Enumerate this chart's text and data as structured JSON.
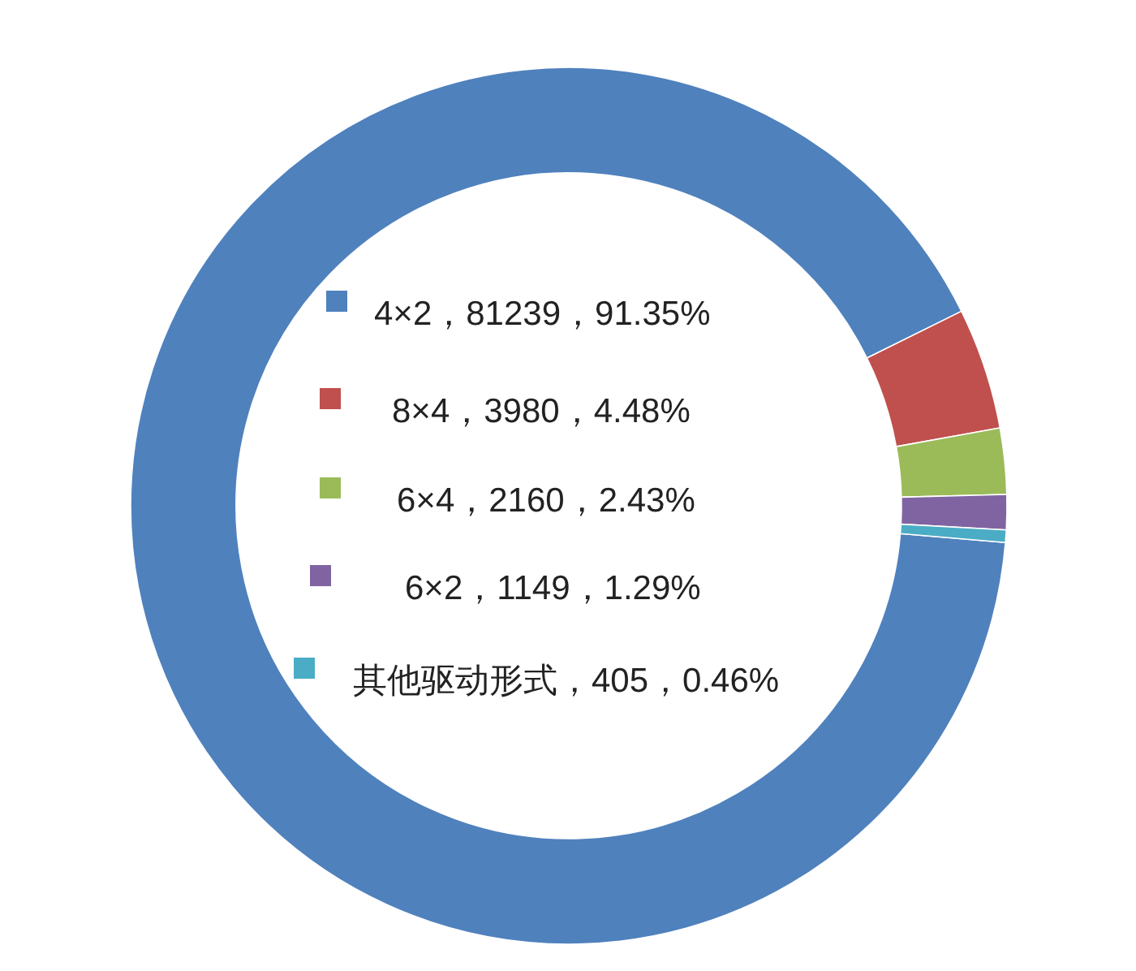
{
  "chart_data": {
    "type": "donut",
    "categories": [
      "4×2，81239，91.35%",
      "8×4，3980，4.48%",
      "6×4，2160，2.43%",
      "6×2，1149，1.29%",
      "其他驱动形式，405，0.46%"
    ],
    "values": [
      81239,
      3980,
      2160,
      1149,
      405
    ],
    "colors": [
      "#4f81bd",
      "#c0504d",
      "#9bbb59",
      "#8064a2",
      "#4bacc6"
    ],
    "legend": "center"
  }
}
